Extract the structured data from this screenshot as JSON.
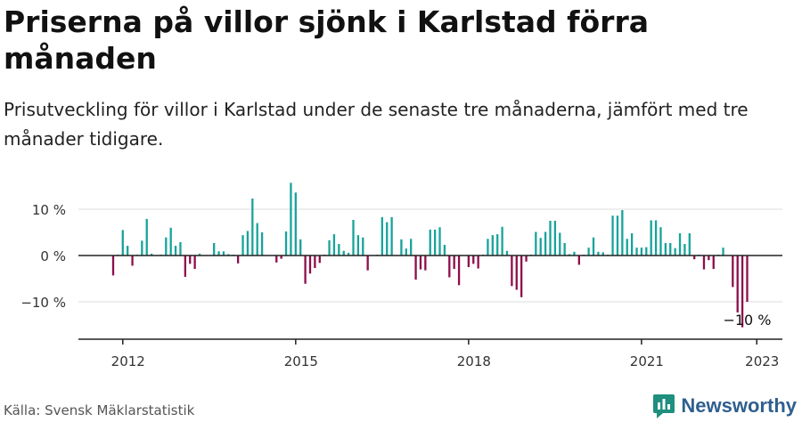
{
  "title": "Priserna på villor sjönk i Karlstad förra månaden",
  "subtitle": "Prisutveckling för villor i Karlstad under de senaste tre månaderna, jämfört med tre månader tidigare.",
  "source": "Källa: Svensk Mäklarstatistik",
  "brand": "Newsworthy",
  "colors": {
    "positive": "#17a39a",
    "negative": "#8e0d4b",
    "grid": "#dddddd",
    "axis": "#222222",
    "brand_text": "#2f5f8f",
    "brand_icon": "#1f8f7e"
  },
  "chart_data": {
    "type": "bar",
    "x_start": "2011-11",
    "x_end": "2022-11",
    "y_tick_values": [
      10,
      0,
      -10
    ],
    "y_tick_labels": [
      "10 %",
      "0 %",
      "−10 %"
    ],
    "ylim": [
      -18,
      18
    ],
    "grid": true,
    "x_ticks": [
      "2012",
      "2015",
      "2018",
      "2021",
      "2023"
    ],
    "annotation": {
      "text": "−10 %",
      "month": "2022-11",
      "value": -10
    },
    "values": [
      -4.3,
      0.2,
      5.5,
      2.1,
      -2.2,
      0.2,
      3.2,
      7.9,
      0.4,
      0.1,
      0.2,
      3.9,
      6.0,
      2.1,
      2.9,
      -4.6,
      -1.8,
      -2.9,
      0.4,
      0.1,
      0.1,
      2.7,
      0.9,
      0.9,
      0.3,
      0.2,
      -1.7,
      4.4,
      5.3,
      12.3,
      7.0,
      5.0,
      0.1,
      0.1,
      -1.5,
      -0.7,
      5.2,
      15.7,
      13.6,
      3.5,
      -6.1,
      -3.9,
      -2.7,
      -1.6,
      0.2,
      3.3,
      4.6,
      2.5,
      1.0,
      0.6,
      7.7,
      4.4,
      3.9,
      -3.2,
      0.1,
      0.2,
      8.3,
      7.2,
      8.3,
      0.1,
      3.5,
      1.5,
      3.6,
      -5.2,
      -3.0,
      -3.2,
      5.6,
      5.6,
      6.1,
      2.3,
      -4.7,
      -2.9,
      -6.4,
      0.1,
      -2.5,
      -1.8,
      -2.8,
      0.2,
      3.6,
      4.4,
      4.6,
      6.2,
      1.0,
      -6.6,
      -7.4,
      -9.0,
      -1.3,
      0.2,
      5.1,
      3.8,
      5.1,
      7.5,
      7.5,
      4.9,
      2.7,
      0.3,
      0.8,
      -2.0,
      0.2,
      1.7,
      3.9,
      0.8,
      0.7,
      0.2,
      8.6,
      8.6,
      9.8,
      3.6,
      4.8,
      1.7,
      1.7,
      1.8,
      7.6,
      7.6,
      6.1,
      2.7,
      2.7,
      1.6,
      4.8,
      2.5,
      4.8,
      -0.8,
      0.2,
      -3.0,
      -1.0,
      -2.9,
      0.2,
      1.7,
      0.1,
      -6.8,
      -12.3,
      -15.5,
      -10.0
    ]
  }
}
